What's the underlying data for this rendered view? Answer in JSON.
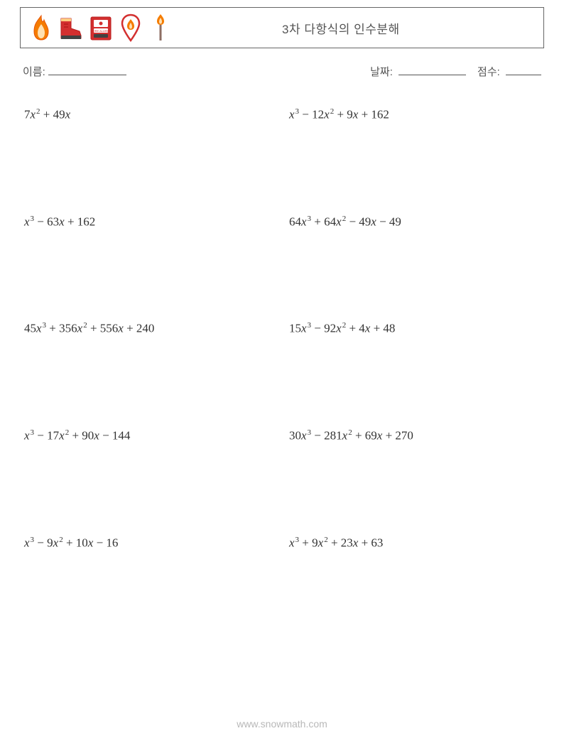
{
  "header": {
    "title": "3차 다항식의 인수분해",
    "icons": [
      {
        "name": "flame-icon",
        "colors": {
          "outer": "#f57c00",
          "inner": "#ffcc80"
        }
      },
      {
        "name": "boot-icon",
        "colors": {
          "main": "#d32f2f",
          "sole": "#424242"
        }
      },
      {
        "name": "fire-alarm-icon",
        "colors": {
          "box": "#d32f2f",
          "panel": "#ffffff"
        }
      },
      {
        "name": "location-fire-icon",
        "colors": {
          "pin": "#d32f2f",
          "flame": "#f57c00"
        }
      },
      {
        "name": "match-icon",
        "colors": {
          "flame": "#f57c00",
          "stick": "#8d6e63"
        }
      }
    ]
  },
  "info": {
    "name_label": "이름:",
    "date_label": "날짜:",
    "score_label": "점수:"
  },
  "problems": [
    {
      "terms": [
        {
          "c": "7",
          "v": "x",
          "e": "2"
        },
        {
          "op": " + ",
          "c": "49",
          "v": "x"
        }
      ]
    },
    {
      "terms": [
        {
          "v": "x",
          "e": "3"
        },
        {
          "op": " − ",
          "c": "12",
          "v": "x",
          "e": "2"
        },
        {
          "op": " + ",
          "c": "9",
          "v": "x"
        },
        {
          "op": " + ",
          "c": "162"
        }
      ]
    },
    {
      "terms": [
        {
          "v": "x",
          "e": "3"
        },
        {
          "op": " − ",
          "c": "63",
          "v": "x"
        },
        {
          "op": " + ",
          "c": "162"
        }
      ]
    },
    {
      "terms": [
        {
          "c": "64",
          "v": "x",
          "e": "3"
        },
        {
          "op": " + ",
          "c": "64",
          "v": "x",
          "e": "2"
        },
        {
          "op": " − ",
          "c": "49",
          "v": "x"
        },
        {
          "op": " − ",
          "c": "49"
        }
      ]
    },
    {
      "terms": [
        {
          "c": "45",
          "v": "x",
          "e": "3"
        },
        {
          "op": " + ",
          "c": "356",
          "v": "x",
          "e": "2"
        },
        {
          "op": " + ",
          "c": "556",
          "v": "x"
        },
        {
          "op": " + ",
          "c": "240"
        }
      ]
    },
    {
      "terms": [
        {
          "c": "15",
          "v": "x",
          "e": "3"
        },
        {
          "op": " − ",
          "c": "92",
          "v": "x",
          "e": "2"
        },
        {
          "op": " + ",
          "c": "4",
          "v": "x"
        },
        {
          "op": " + ",
          "c": "48"
        }
      ]
    },
    {
      "terms": [
        {
          "v": "x",
          "e": "3"
        },
        {
          "op": " − ",
          "c": "17",
          "v": "x",
          "e": "2"
        },
        {
          "op": " + ",
          "c": "90",
          "v": "x"
        },
        {
          "op": " − ",
          "c": "144"
        }
      ]
    },
    {
      "terms": [
        {
          "c": "30",
          "v": "x",
          "e": "3"
        },
        {
          "op": " − ",
          "c": "281",
          "v": "x",
          "e": "2"
        },
        {
          "op": " + ",
          "c": "69",
          "v": "x"
        },
        {
          "op": " + ",
          "c": "270"
        }
      ]
    },
    {
      "terms": [
        {
          "v": "x",
          "e": "3"
        },
        {
          "op": " − ",
          "c": "9",
          "v": "x",
          "e": "2"
        },
        {
          "op": " + ",
          "c": "10",
          "v": "x"
        },
        {
          "op": " − ",
          "c": "16"
        }
      ]
    },
    {
      "terms": [
        {
          "v": "x",
          "e": "3"
        },
        {
          "op": " + ",
          "c": "9",
          "v": "x",
          "e": "2"
        },
        {
          "op": " + ",
          "c": "23",
          "v": "x"
        },
        {
          "op": " + ",
          "c": "63"
        }
      ]
    }
  ],
  "footer": {
    "url": "www.snowmath.com"
  },
  "style": {
    "page_bg": "#ffffff",
    "text_color": "#333333",
    "label_color": "#555555",
    "footer_color": "#b8b8b8",
    "border_color": "#666666",
    "math_font": "Times New Roman",
    "body_font": "Arial"
  }
}
